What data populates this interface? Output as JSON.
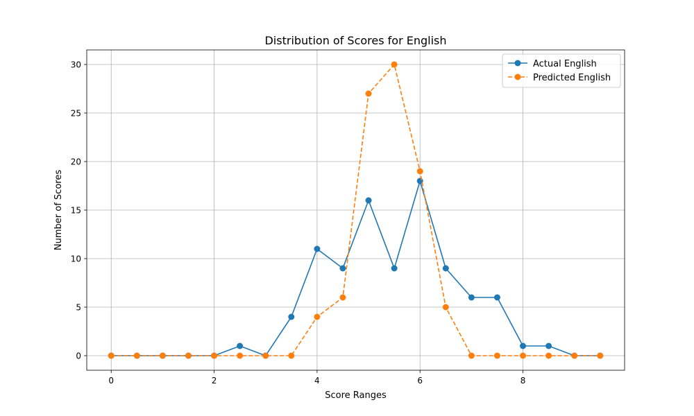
{
  "chart_data": {
    "type": "line",
    "title": "Distribution of Scores for English",
    "xlabel": "Score Ranges",
    "ylabel": "Number of Scores",
    "x": [
      0,
      0.5,
      1,
      1.5,
      2,
      2.5,
      3,
      3.5,
      4,
      4.5,
      5,
      5.5,
      6,
      6.5,
      7,
      7.5,
      8,
      8.5,
      9,
      9.5
    ],
    "series": [
      {
        "name": "Actual English",
        "color": "#1f77b4",
        "linestyle": "solid",
        "values": [
          0,
          0,
          0,
          0,
          0,
          1,
          0,
          4,
          11,
          9,
          16,
          9,
          18,
          9,
          6,
          6,
          1,
          1,
          0,
          0
        ]
      },
      {
        "name": "Predicted English",
        "color": "#ff7f0e",
        "linestyle": "dashed",
        "values": [
          0,
          0,
          0,
          0,
          0,
          0,
          0,
          0,
          4,
          6,
          27,
          30,
          19,
          5,
          0,
          0,
          0,
          0,
          0,
          0
        ]
      }
    ],
    "xlim": [
      -0.475,
      9.975
    ],
    "ylim": [
      -1.5,
      31.5
    ],
    "xticks": [
      0,
      2,
      4,
      6,
      8
    ],
    "yticks": [
      0,
      5,
      10,
      15,
      20,
      25,
      30
    ],
    "grid": true,
    "legend_position": "top-right"
  }
}
